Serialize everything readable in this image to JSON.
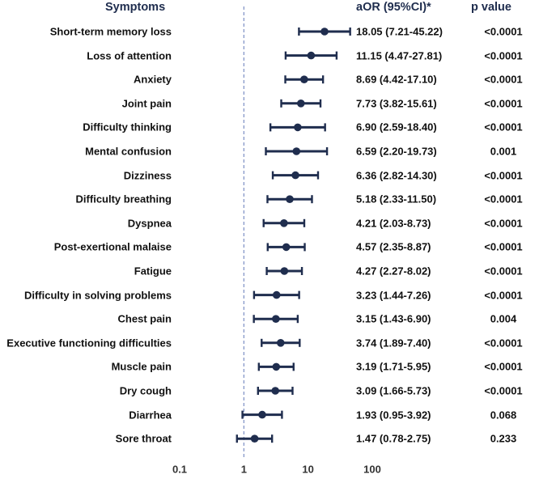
{
  "header": {
    "symptoms": "Symptoms",
    "aor": "aOR  (95%CI)*",
    "pvalue": "p value"
  },
  "chart_data": {
    "type": "forest",
    "xscale": "log",
    "xlim": [
      0.1,
      100
    ],
    "reference_line": 1,
    "reference_style": "dashed",
    "x_ticks": [
      "0.1",
      "1",
      "10",
      "100"
    ],
    "colors": {
      "marker": "#1f2d4e",
      "reference": "#7b8fc4"
    },
    "rows": [
      {
        "label": "Short-term memory loss",
        "or": 18.05,
        "lo": 7.21,
        "hi": 45.22,
        "ci_text": "18.05 (7.21-45.22)",
        "p": "<0.0001"
      },
      {
        "label": "Loss of attention",
        "or": 11.15,
        "lo": 4.47,
        "hi": 27.81,
        "ci_text": "11.15 (4.47-27.81)",
        "p": "<0.0001"
      },
      {
        "label": "Anxiety",
        "or": 8.69,
        "lo": 4.42,
        "hi": 17.1,
        "ci_text": "8.69 (4.42-17.10)",
        "p": "<0.0001"
      },
      {
        "label": "Joint pain",
        "or": 7.73,
        "lo": 3.82,
        "hi": 15.61,
        "ci_text": "7.73 (3.82-15.61)",
        "p": "<0.0001"
      },
      {
        "label": "Difficulty thinking",
        "or": 6.9,
        "lo": 2.59,
        "hi": 18.4,
        "ci_text": "6.90 (2.59-18.40)",
        "p": "<0.0001"
      },
      {
        "label": "Mental confusion",
        "or": 6.59,
        "lo": 2.2,
        "hi": 19.73,
        "ci_text": "6.59 (2.20-19.73)",
        "p": "0.001"
      },
      {
        "label": "Dizziness",
        "or": 6.36,
        "lo": 2.82,
        "hi": 14.3,
        "ci_text": "6.36 (2.82-14.30)",
        "p": "<0.0001"
      },
      {
        "label": "Difficulty breathing",
        "or": 5.18,
        "lo": 2.33,
        "hi": 11.5,
        "ci_text": "5.18 (2.33-11.50)",
        "p": "<0.0001"
      },
      {
        "label": "Dyspnea",
        "or": 4.21,
        "lo": 2.03,
        "hi": 8.73,
        "ci_text": "4.21 (2.03-8.73)",
        "p": "<0.0001"
      },
      {
        "label": "Post-exertional malaise",
        "or": 4.57,
        "lo": 2.35,
        "hi": 8.87,
        "ci_text": "4.57 (2.35-8.87)",
        "p": "<0.0001"
      },
      {
        "label": "Fatigue",
        "or": 4.27,
        "lo": 2.27,
        "hi": 8.02,
        "ci_text": "4.27 (2.27-8.02)",
        "p": "<0.0001"
      },
      {
        "label": "Difficulty in solving problems",
        "or": 3.23,
        "lo": 1.44,
        "hi": 7.26,
        "ci_text": "3.23 (1.44-7.26)",
        "p": "<0.0001"
      },
      {
        "label": "Chest pain",
        "or": 3.15,
        "lo": 1.43,
        "hi": 6.9,
        "ci_text": "3.15 (1.43-6.90)",
        "p": "0.004"
      },
      {
        "label": "Executive functioning difficulties",
        "or": 3.74,
        "lo": 1.89,
        "hi": 7.4,
        "ci_text": "3.74 (1.89-7.40)",
        "p": "<0.0001"
      },
      {
        "label": "Muscle pain",
        "or": 3.19,
        "lo": 1.71,
        "hi": 5.95,
        "ci_text": "3.19 (1.71-5.95)",
        "p": "<0.0001"
      },
      {
        "label": "Dry cough",
        "or": 3.09,
        "lo": 1.66,
        "hi": 5.73,
        "ci_text": "3.09 (1.66-5.73)",
        "p": "<0.0001"
      },
      {
        "label": "Diarrhea",
        "or": 1.93,
        "lo": 0.95,
        "hi": 3.92,
        "ci_text": "1.93 (0.95-3.92)",
        "p": "0.068"
      },
      {
        "label": "Sore throat",
        "or": 1.47,
        "lo": 0.78,
        "hi": 2.75,
        "ci_text": "1.47 (0.78-2.75)",
        "p": "0.233"
      }
    ]
  }
}
